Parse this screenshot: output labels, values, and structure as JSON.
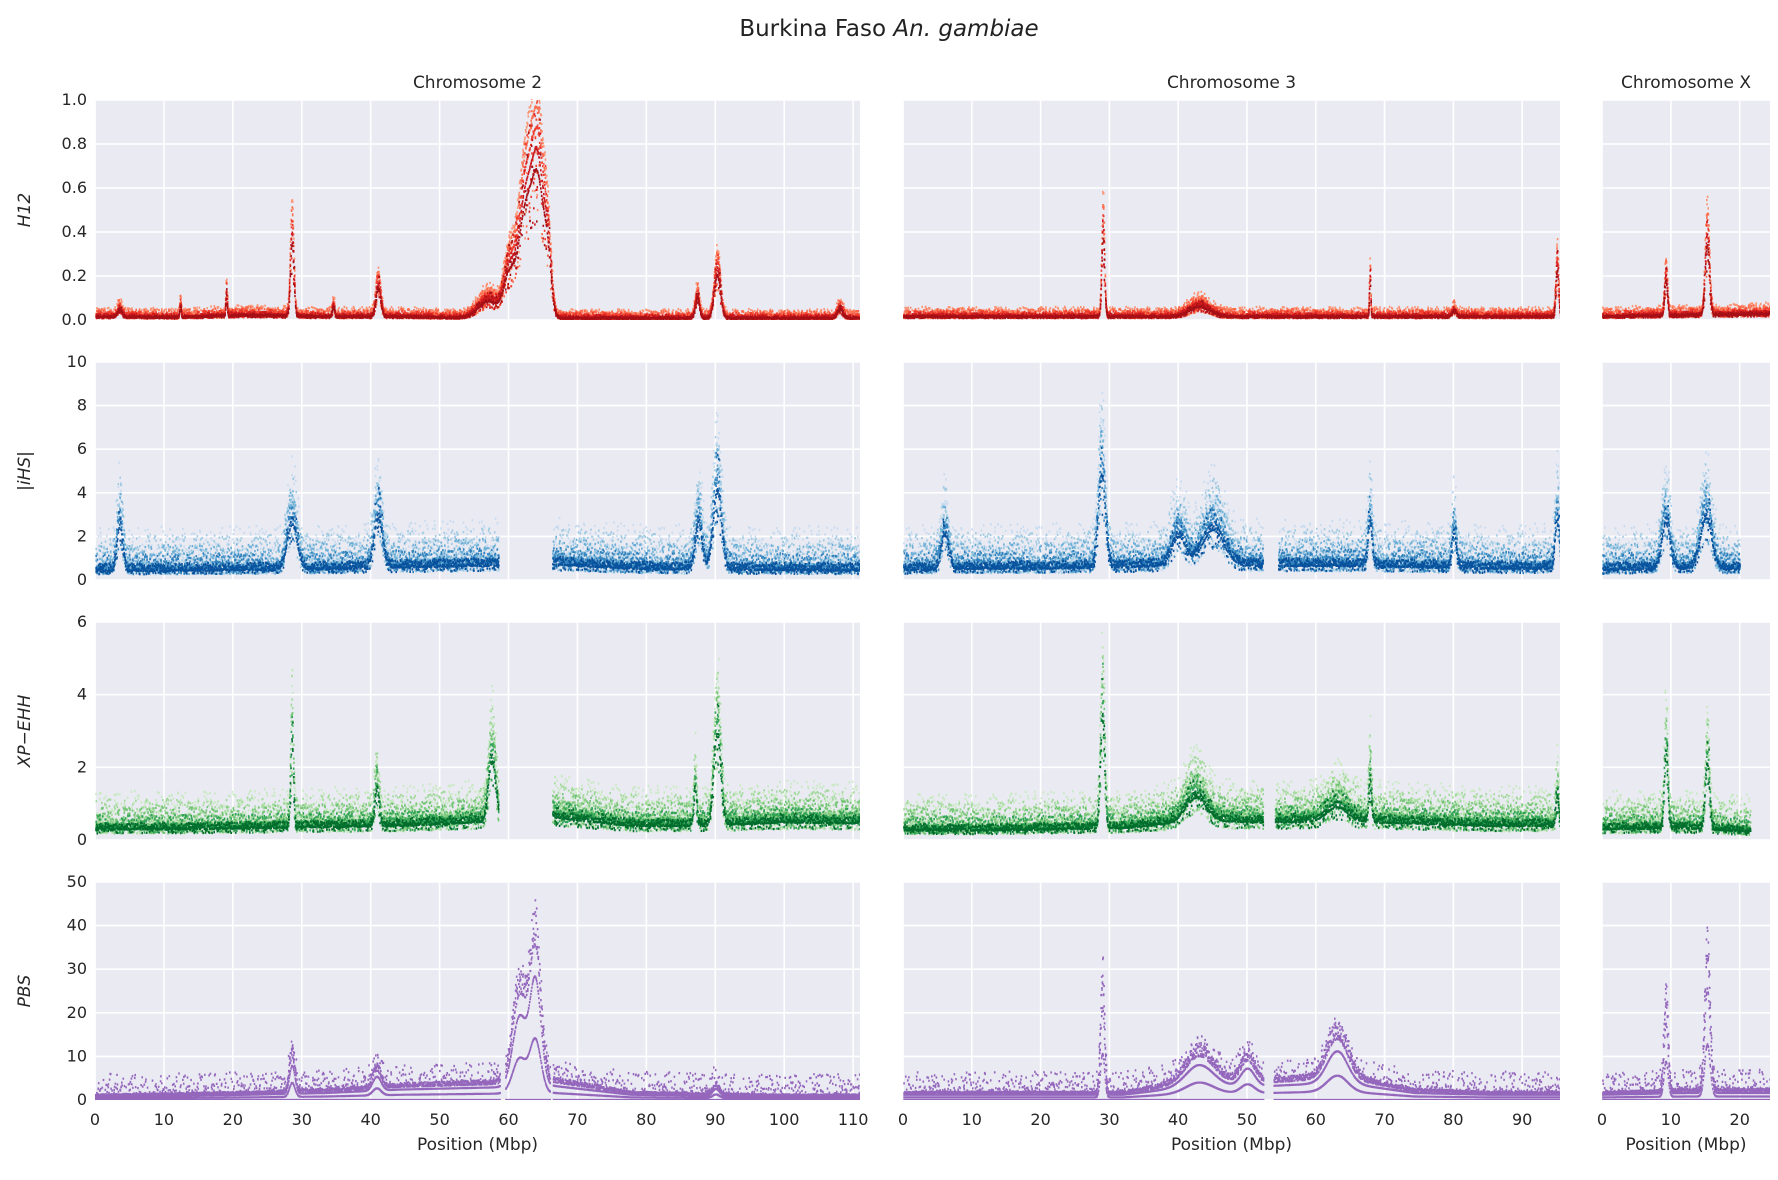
{
  "chart_data": {
    "type": "scatter",
    "title_prefix": "Burkina Faso",
    "title_species": "An. gambiae",
    "grid": true,
    "chromosomes": [
      {
        "name": "Chromosome 2",
        "xlim": [
          0,
          111
        ],
        "xticks": [
          0,
          10,
          20,
          30,
          40,
          50,
          60,
          70,
          80,
          90,
          100,
          110
        ]
      },
      {
        "name": "Chromosome 3",
        "xlim": [
          0,
          95.5
        ],
        "xticks": [
          0,
          10,
          20,
          30,
          40,
          50,
          60,
          70,
          80,
          90
        ]
      },
      {
        "name": "Chromosome X",
        "xlim": [
          0,
          24.4
        ],
        "xticks": [
          0,
          10,
          20
        ]
      }
    ],
    "xlabel": "Position (Mbp)",
    "rows": [
      {
        "stat": "H12",
        "ylabel": "H12",
        "ylim": [
          0,
          1.0
        ],
        "yticks": [
          "0.0",
          "0.2",
          "0.4",
          "0.6",
          "0.8",
          "1.0"
        ],
        "colors": [
          "#fc9272",
          "#fb6a4a",
          "#ef3b2c",
          "#cb181d",
          "#a50f15"
        ],
        "baseline": [
          [
            0.02,
            0.015,
            0.03,
            0.02,
            0.02,
            0.01,
            0.01,
            0.01,
            0.01,
            0.01,
            0.01
          ],
          [
            0.02,
            0.02,
            0.02,
            0.02,
            0.02,
            0.02,
            0.02,
            0.02,
            0.02,
            0.02
          ],
          [
            0.02,
            0.03,
            0.04
          ]
        ],
        "noise": 0.04,
        "peaks": [
          [
            [
              3.5,
              0.05,
              0.3
            ],
            [
              12.3,
              0.08,
              0.1
            ],
            [
              19,
              0.15,
              0.1
            ],
            [
              28.5,
              0.52,
              0.25
            ],
            [
              34.5,
              0.07,
              0.15
            ],
            [
              41,
              0.2,
              0.35
            ],
            [
              57,
              0.12,
              1.5
            ],
            [
              60,
              0.28,
              0.8
            ],
            [
              62.3,
              0.72,
              1.0
            ],
            [
              64.2,
              0.9,
              0.9
            ],
            [
              65.6,
              0.3,
              0.5
            ],
            [
              87.3,
              0.14,
              0.3
            ],
            [
              90.2,
              0.3,
              0.45
            ],
            [
              108,
              0.06,
              0.4
            ]
          ],
          [
            [
              29,
              0.56,
              0.2
            ],
            [
              43,
              0.07,
              1.5
            ],
            [
              67.8,
              0.25,
              0.1
            ],
            [
              80,
              0.04,
              0.3
            ],
            [
              95,
              0.32,
              0.2
            ]
          ],
          [
            [
              9.2,
              0.25,
              0.2
            ],
            [
              15.2,
              0.5,
              0.3
            ]
          ]
        ],
        "gaps": [
          [],
          [],
          []
        ]
      },
      {
        "stat": "iHS",
        "ylabel": "|iHS|",
        "ylim": [
          0,
          10
        ],
        "yticks": [
          "0",
          "2",
          "4",
          "6",
          "8",
          "10"
        ],
        "colors": [
          "#c6dbef",
          "#9ecae1",
          "#6baed6",
          "#3182bd",
          "#08519c"
        ],
        "baseline": [
          [
            0.6,
            0.65,
            0.7,
            0.75,
            0.9,
            1.0,
            1.1,
            0.8,
            0.7,
            0.7,
            0.65
          ],
          [
            0.7,
            0.8,
            0.8,
            0.9,
            1.1,
            1.0,
            1.0,
            0.9,
            0.8,
            0.8
          ],
          [
            0.7,
            0.8,
            0.7
          ]
        ],
        "noise": 1.8,
        "peaks": [
          [
            [
              3.5,
              3.2,
              0.4
            ],
            [
              28.5,
              3.2,
              0.7
            ],
            [
              41,
              3.5,
              0.6
            ],
            [
              87.5,
              3.2,
              0.5
            ],
            [
              90.2,
              5.5,
              0.6
            ]
          ],
          [
            [
              6,
              2.5,
              0.5
            ],
            [
              28.8,
              6.5,
              0.5
            ],
            [
              40,
              2.0,
              1.0
            ],
            [
              45,
              2.5,
              1.5
            ],
            [
              67.8,
              3.0,
              0.3
            ],
            [
              80,
              2.5,
              0.3
            ],
            [
              95,
              3.5,
              0.3
            ]
          ],
          [
            [
              9.2,
              3.2,
              0.6
            ],
            [
              15,
              3.6,
              0.8
            ]
          ]
        ],
        "gaps": [
          [
            [
              58.5,
              66.3
            ]
          ],
          [
            [
              52.3,
              54.5
            ]
          ],
          [
            [
              20,
              24.4
            ]
          ]
        ]
      },
      {
        "stat": "XP-EHH",
        "ylabel": "XP−EHH",
        "ylim": [
          0,
          6
        ],
        "yticks": [
          "0",
          "2",
          "4",
          "6"
        ],
        "colors": [
          "#c7e9c0",
          "#a1d99b",
          "#74c476",
          "#31a354",
          "#006d2c"
        ],
        "baseline": [
          [
            0.45,
            0.45,
            0.5,
            0.55,
            0.6,
            0.75,
            0.95,
            0.6,
            0.6,
            0.75,
            0.7
          ],
          [
            0.4,
            0.4,
            0.45,
            0.5,
            0.8,
            0.75,
            0.8,
            0.7,
            0.6,
            0.6
          ],
          [
            0.45,
            0.5,
            0.3
          ]
        ],
        "noise": 0.9,
        "peaks": [
          [
            [
              28.5,
              3.7,
              0.2
            ],
            [
              40.8,
              1.5,
              0.3
            ],
            [
              57.5,
              2.6,
              0.5
            ],
            [
              64.8,
              4.2,
              0.5
            ],
            [
              65.6,
              2.4,
              0.3
            ],
            [
              87,
              1.5,
              0.2
            ],
            [
              90.2,
              3.8,
              0.5
            ]
          ],
          [
            [
              28.9,
              4.7,
              0.3
            ],
            [
              42.5,
              1.0,
              1.5
            ],
            [
              63,
              0.6,
              1.5
            ],
            [
              67.8,
              1.8,
              0.2
            ],
            [
              95,
              1.2,
              0.2
            ]
          ],
          [
            [
              9.2,
              3.2,
              0.25
            ],
            [
              15.2,
              2.8,
              0.3
            ]
          ]
        ],
        "gaps": [
          [
            [
              58.5,
              66.3
            ]
          ],
          [
            [
              52.3,
              54.0
            ]
          ],
          [
            [
              21.5,
              24.4
            ]
          ]
        ]
      },
      {
        "stat": "PBS",
        "ylabel": "PBS",
        "ylim": [
          0,
          50
        ],
        "yticks": [
          "0",
          "10",
          "20",
          "30",
          "40",
          "50"
        ],
        "colors": [
          "#9467bd"
        ],
        "baseline": [
          [
            1.0,
            1.2,
            1.5,
            2.0,
            3.0,
            3.5,
            4.0,
            1.5,
            1.2,
            1.0,
            1.0
          ],
          [
            1.5,
            1.5,
            1.5,
            1.5,
            4.0,
            4.0,
            5.0,
            2.0,
            1.5,
            1.5
          ],
          [
            1.5,
            2.0,
            2.0
          ]
        ],
        "noise": 2.5,
        "peaks": [
          [
            [
              28.5,
              8,
              0.4
            ],
            [
              40.8,
              4,
              0.6
            ],
            [
              61.5,
              20,
              1.0
            ],
            [
              63.8,
              30,
              0.8
            ],
            [
              90,
              2,
              0.5
            ]
          ],
          [
            [
              28.9,
              25,
              0.3
            ],
            [
              43,
              6,
              2.0
            ],
            [
              50,
              5,
              1.0
            ],
            [
              63,
              9,
              1.5
            ]
          ],
          [
            [
              9.2,
              20,
              0.3
            ],
            [
              15.2,
              30,
              0.4
            ]
          ]
        ],
        "gaps": [
          [
            [
              58.7,
              59.5
            ],
            [
              66.0,
              66.4
            ]
          ],
          [
            [
              52.3,
              53.8
            ]
          ],
          []
        ]
      }
    ]
  }
}
